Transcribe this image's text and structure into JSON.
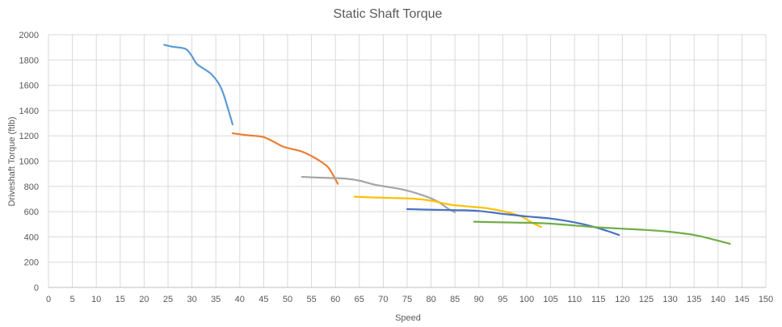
{
  "chart_data": {
    "type": "line",
    "title": "Static Shaft Torque",
    "xlabel": "Speed",
    "ylabel": "Driveshaft Torque (ftlb)",
    "xlim": [
      0,
      150
    ],
    "ylim": [
      0,
      2000
    ],
    "xticks": [
      0,
      5,
      10,
      15,
      20,
      25,
      30,
      35,
      40,
      45,
      50,
      55,
      60,
      65,
      70,
      75,
      80,
      85,
      90,
      95,
      100,
      105,
      110,
      115,
      120,
      125,
      130,
      135,
      140,
      145,
      150
    ],
    "yticks": [
      0,
      200,
      400,
      600,
      800,
      1000,
      1200,
      1400,
      1600,
      1800,
      2000
    ],
    "grid": true,
    "legend": "none",
    "series": [
      {
        "color": "#5b9bd5",
        "points": [
          [
            24.2,
            1920
          ],
          [
            26,
            1905
          ],
          [
            28,
            1895
          ],
          [
            29,
            1880
          ],
          [
            30,
            1830
          ],
          [
            31,
            1770
          ],
          [
            32.5,
            1730
          ],
          [
            34,
            1690
          ],
          [
            35.5,
            1620
          ],
          [
            36.5,
            1540
          ],
          [
            37.5,
            1420
          ],
          [
            38.5,
            1290
          ]
        ]
      },
      {
        "color": "#ed7d31",
        "points": [
          [
            38.5,
            1220
          ],
          [
            41,
            1207
          ],
          [
            43,
            1200
          ],
          [
            45,
            1190
          ],
          [
            47,
            1155
          ],
          [
            49,
            1115
          ],
          [
            51,
            1095
          ],
          [
            53,
            1075
          ],
          [
            55,
            1040
          ],
          [
            57,
            995
          ],
          [
            58.5,
            950
          ],
          [
            59.5,
            890
          ],
          [
            60.5,
            820
          ]
        ]
      },
      {
        "color": "#a5a5a5",
        "points": [
          [
            53,
            875
          ],
          [
            56,
            870
          ],
          [
            59,
            866
          ],
          [
            62,
            862
          ],
          [
            65,
            845
          ],
          [
            68,
            815
          ],
          [
            71,
            795
          ],
          [
            74,
            775
          ],
          [
            77,
            745
          ],
          [
            80,
            705
          ],
          [
            82,
            665
          ],
          [
            83.5,
            625
          ],
          [
            85,
            595
          ]
        ]
      },
      {
        "color": "#ffc000",
        "points": [
          [
            64,
            718
          ],
          [
            68,
            712
          ],
          [
            72,
            708
          ],
          [
            76,
            703
          ],
          [
            80,
            687
          ],
          [
            84,
            655
          ],
          [
            88,
            640
          ],
          [
            92,
            625
          ],
          [
            96,
            595
          ],
          [
            99,
            560
          ],
          [
            101,
            515
          ],
          [
            103,
            478
          ]
        ]
      },
      {
        "color": "#4472c4",
        "points": [
          [
            75,
            620
          ],
          [
            80,
            615
          ],
          [
            85,
            612
          ],
          [
            90,
            605
          ],
          [
            95,
            582
          ],
          [
            100,
            562
          ],
          [
            105,
            545
          ],
          [
            110,
            515
          ],
          [
            114,
            480
          ],
          [
            117,
            445
          ],
          [
            119.3,
            415
          ]
        ]
      },
      {
        "color": "#70ad47",
        "points": [
          [
            89,
            520
          ],
          [
            95,
            515
          ],
          [
            100,
            512
          ],
          [
            105,
            505
          ],
          [
            110,
            490
          ],
          [
            115,
            475
          ],
          [
            120,
            465
          ],
          [
            125,
            455
          ],
          [
            130,
            440
          ],
          [
            135,
            415
          ],
          [
            139,
            380
          ],
          [
            142.5,
            345
          ]
        ]
      }
    ]
  }
}
